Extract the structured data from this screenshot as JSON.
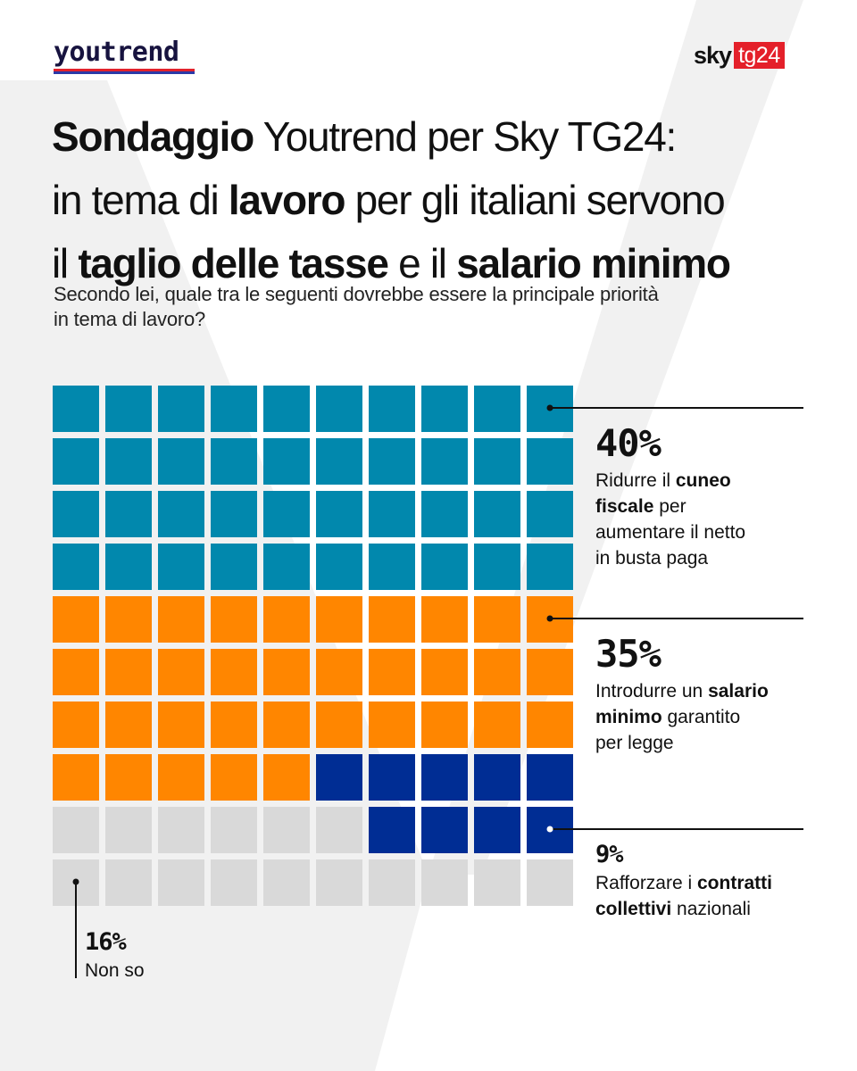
{
  "brand": {
    "youtrend_logo": "youtrend",
    "sky_logo": "sky",
    "tg24_logo": "tg24"
  },
  "title": {
    "line1_bold": "Sondaggio",
    "line1_rest": " Youtrend per Sky TG24:",
    "line2_pre": "in tema di ",
    "line2_bold": "lavoro",
    "line2_post": " per gli italiani servono",
    "line3_pre": "il ",
    "line3_bold1": "taglio delle tasse",
    "line3_mid": " e il ",
    "line3_bold2": "salario minimo"
  },
  "subtitle": {
    "line1": "Secondo lei, quale tra le seguenti dovrebbe essere la principale priorità",
    "line2": "in tema di lavoro?"
  },
  "annotations": {
    "cuneo": {
      "pct": "40%",
      "l1_pre": "Ridurre il ",
      "l1_bold": "cuneo",
      "l2_bold": "fiscale",
      "l2_post": " per",
      "l3": "aumentare il netto",
      "l4": "in busta paga"
    },
    "salario": {
      "pct": "35%",
      "l1_pre": "Introdurre un ",
      "l1_bold": "salario",
      "l2_bold": "minimo",
      "l2_post": " garantito",
      "l3": "per legge"
    },
    "contratti": {
      "pct": "9%",
      "l1_pre": "Rafforzare i ",
      "l1_bold": "contratti",
      "l2_bold": "collettivi",
      "l2_post": " nazionali"
    },
    "nonso": {
      "pct": "16%",
      "label": "Non so"
    }
  },
  "chart_data": {
    "type": "waffle",
    "title": "Sondaggio Youtrend per Sky TG24: in tema di lavoro per gli italiani servono il taglio delle tasse e il salario minimo",
    "subtitle": "Secondo lei, quale tra le seguenti dovrebbe essere la principale priorità in tema di lavoro?",
    "grid": {
      "rows": 10,
      "cols": 10
    },
    "fill_order": "rows top-to-bottom; series 1-2 left-to-right, series 3 right-to-left, remainder = Non so",
    "series": [
      {
        "name": "Ridurre il cuneo fiscale per aumentare il netto in busta paga",
        "value": 40,
        "color": "#0188ad"
      },
      {
        "name": "Introdurre un salario minimo garantito per legge",
        "value": 35,
        "color": "#ff8600"
      },
      {
        "name": "Rafforzare i contratti collettivi nazionali",
        "value": 9,
        "color": "#002d94"
      },
      {
        "name": "Non so",
        "value": 16,
        "color": "#d9d9d9"
      }
    ]
  }
}
